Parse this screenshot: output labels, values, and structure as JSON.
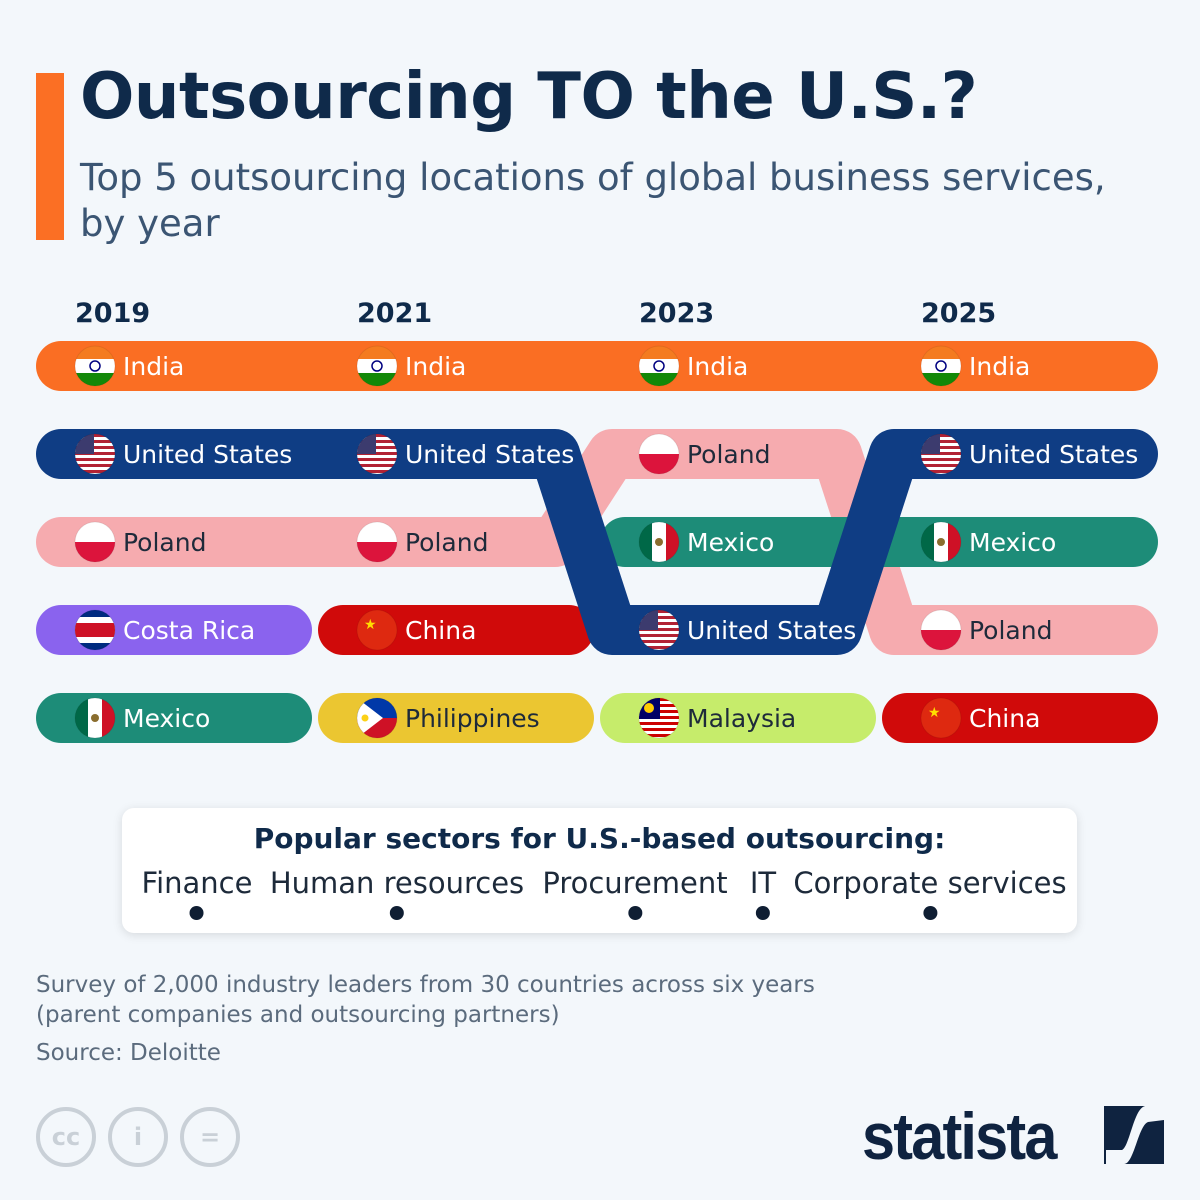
{
  "header": {
    "title": "Outsourcing TO the U.S.?",
    "subtitle": "Top 5 outsourcing locations of global business services, by year"
  },
  "colors": {
    "accent": "#fb6f24",
    "India": "#fa6e23",
    "United States": "#0f3d84",
    "Poland": "#f6abaf",
    "Mexico": "#1d8c78",
    "Costa Rica": "#8a63ee",
    "China": "#d00a0a",
    "Philippines": "#ebc631",
    "Malaysia": "#c6ec6b"
  },
  "chart_data": {
    "type": "bump",
    "years": [
      "2019",
      "2021",
      "2023",
      "2025"
    ],
    "rankings": [
      [
        "India",
        "United States",
        "Poland",
        "Costa Rica",
        "Mexico"
      ],
      [
        "India",
        "United States",
        "Poland",
        "China",
        "Philippines"
      ],
      [
        "India",
        "Poland",
        "Mexico",
        "United States",
        "Malaysia"
      ],
      [
        "India",
        "United States",
        "Mexico",
        "Poland",
        "China"
      ]
    ]
  },
  "sectors": {
    "title": "Popular sectors for U.S.-based outsourcing:",
    "items": [
      "Finance",
      "Human resources",
      "Procurement",
      "IT",
      "Corporate services"
    ]
  },
  "footer": {
    "note_line1": "Survey of 2,000 industry leaders from 30 countries across six years",
    "note_line2": "(parent companies and outsourcing partners)",
    "source": "Source: Deloitte",
    "license_icons": [
      "cc-icon",
      "attribution-icon",
      "no-derivatives-icon"
    ],
    "logo": "statista"
  }
}
